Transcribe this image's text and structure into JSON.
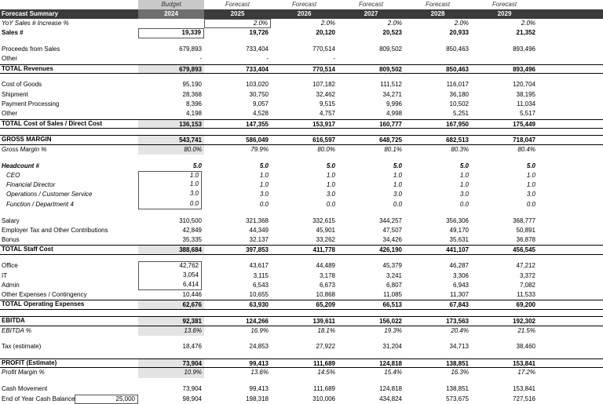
{
  "header": {
    "row1": [
      "",
      "Budget",
      "Forecast",
      "Forecast",
      "Forecast",
      "Forecast",
      "Forecast"
    ],
    "row2": [
      "Forecast Summary",
      "2024",
      "2025",
      "2026",
      "2027",
      "2028",
      "2029"
    ]
  },
  "rows": [
    {
      "label": "YoY Sales # Increase %",
      "values": [
        "",
        "2.0%",
        "2.0%",
        "2.0%",
        "2.0%",
        "2.0%"
      ],
      "style": "ital"
    },
    {
      "label": "Sales #",
      "values": [
        "19,339",
        "19,726",
        "20,120",
        "20,523",
        "20,933",
        "21,352"
      ],
      "style": "bold"
    },
    {
      "spacer": true
    },
    {
      "label": "Proceeds from Sales",
      "values": [
        "679,893",
        "733,404",
        "770,514",
        "809,502",
        "850,463",
        "893,496"
      ]
    },
    {
      "label": "Other",
      "values": [
        "-",
        "-",
        "-",
        "",
        "",
        ""
      ]
    },
    {
      "label": "TOTAL Revenues",
      "values": [
        "679,893",
        "733,404",
        "770,514",
        "809,502",
        "850,463",
        "893,496"
      ],
      "style": "total"
    },
    {
      "spacer": true
    },
    {
      "label": "Cost of Goods",
      "values": [
        "95,190",
        "103,020",
        "107,182",
        "111,512",
        "116,017",
        "120,704"
      ]
    },
    {
      "label": "Shipment",
      "values": [
        "28,368",
        "30,750",
        "32,462",
        "34,271",
        "36,180",
        "38,195"
      ]
    },
    {
      "label": "Payment Processing",
      "values": [
        "8,396",
        "9,057",
        "9,515",
        "9,996",
        "10,502",
        "11,034"
      ]
    },
    {
      "label": "Other",
      "values": [
        "4,198",
        "4,528",
        "4,757",
        "4,998",
        "5,251",
        "5,517"
      ]
    },
    {
      "label": "TOTAL Cost of Sales / Direct Cost",
      "values": [
        "136,153",
        "147,355",
        "153,917",
        "160,777",
        "167,950",
        "175,449"
      ],
      "style": "total"
    },
    {
      "spacer": true
    },
    {
      "label": "GROSS MARGIN",
      "values": [
        "543,741",
        "586,049",
        "616,597",
        "648,725",
        "682,513",
        "718,047"
      ],
      "style": "total"
    },
    {
      "label": "Gross Margin %",
      "values": [
        "80.0%",
        "79.9%",
        "80.0%",
        "80.1%",
        "80.3%",
        "80.4%"
      ],
      "style": "ital-grey"
    },
    {
      "spacer": true
    },
    {
      "label": "Headcount #",
      "values": [
        "5.0",
        "5.0",
        "5.0",
        "5.0",
        "5.0",
        "5.0"
      ],
      "style": "bold-ital"
    },
    {
      "label": "CEO",
      "values": [
        "1.0",
        "1.0",
        "1.0",
        "1.0",
        "1.0",
        "1.0"
      ],
      "style": "ital-indent",
      "box": "first"
    },
    {
      "label": "Financial Director",
      "values": [
        "1.0",
        "1.0",
        "1.0",
        "1.0",
        "1.0",
        "1.0"
      ],
      "style": "ital-indent",
      "box": "mid"
    },
    {
      "label": "Operations / Customer Service",
      "values": [
        "3.0",
        "3.0",
        "3.0",
        "3.0",
        "3.0",
        "3.0"
      ],
      "style": "ital-indent",
      "box": "mid"
    },
    {
      "label": "Function / Department 4",
      "values": [
        "0.0",
        "0.0",
        "0.0",
        "0.0",
        "0.0",
        "0.0"
      ],
      "style": "ital-indent",
      "box": "last"
    },
    {
      "spacer": true
    },
    {
      "label": "Salary",
      "values": [
        "310,500",
        "321,368",
        "332,615",
        "344,257",
        "356,306",
        "368,777"
      ]
    },
    {
      "label": "Employer Tax and Other Contributions",
      "values": [
        "42,849",
        "44,349",
        "45,901",
        "47,507",
        "49,170",
        "50,891"
      ]
    },
    {
      "label": "Bonus",
      "values": [
        "35,335",
        "32,137",
        "33,262",
        "34,426",
        "35,631",
        "36,878"
      ]
    },
    {
      "label": "TOTAL Staff Cost",
      "values": [
        "388,684",
        "397,853",
        "411,778",
        "426,190",
        "441,107",
        "456,545"
      ],
      "style": "total"
    },
    {
      "spacer": true
    },
    {
      "label": "Office",
      "values": [
        "42,762",
        "43,617",
        "44,489",
        "45,379",
        "46,287",
        "47,212"
      ],
      "box": "first"
    },
    {
      "label": "IT",
      "values": [
        "3,054",
        "3,115",
        "3,178",
        "3,241",
        "3,306",
        "3,372"
      ],
      "box": "mid"
    },
    {
      "label": "Admin",
      "values": [
        "6,414",
        "6,543",
        "6,673",
        "6,807",
        "6,943",
        "7,082"
      ],
      "box": "last"
    },
    {
      "label": "Other Expenses / Contingency",
      "values": [
        "10,446",
        "10,655",
        "10,868",
        "11,085",
        "11,307",
        "11,533"
      ]
    },
    {
      "label": "TOTAL Operating Expenses",
      "values": [
        "62,676",
        "63,930",
        "65,209",
        "66,513",
        "67,843",
        "69,200"
      ],
      "style": "total"
    },
    {
      "spacer": true
    },
    {
      "label": "EBITDA",
      "values": [
        "92,381",
        "124,266",
        "139,611",
        "156,022",
        "173,563",
        "192,302"
      ],
      "style": "total"
    },
    {
      "label": "EBITDA %",
      "values": [
        "13.6%",
        "16.9%",
        "18.1%",
        "19.3%",
        "20.4%",
        "21.5%"
      ],
      "style": "ital-grey"
    },
    {
      "spacer": true
    },
    {
      "label": "Tax (estimate)",
      "values": [
        "18,476",
        "24,853",
        "27,922",
        "31,204",
        "34,713",
        "38,460"
      ]
    },
    {
      "spacer": true
    },
    {
      "label": "PROFIT (Estimate)",
      "values": [
        "73,904",
        "99,413",
        "111,689",
        "124,818",
        "138,851",
        "153,841"
      ],
      "style": "total"
    },
    {
      "label": "Profit Margin %",
      "values": [
        "10.9%",
        "13.6%",
        "14.5%",
        "15.4%",
        "16.3%",
        "17.2%"
      ],
      "style": "ital-grey"
    },
    {
      "spacer": true
    },
    {
      "label": "Cash Movement",
      "values": [
        "73,904",
        "99,413",
        "111,689",
        "124,818",
        "138,851",
        "153,841"
      ]
    },
    {
      "label": "End of Year Cash Balance",
      "opening": "25,000",
      "values": [
        "98,904",
        "198,318",
        "310,006",
        "434,824",
        "573,675",
        "727,516"
      ],
      "style": "eoy"
    }
  ]
}
